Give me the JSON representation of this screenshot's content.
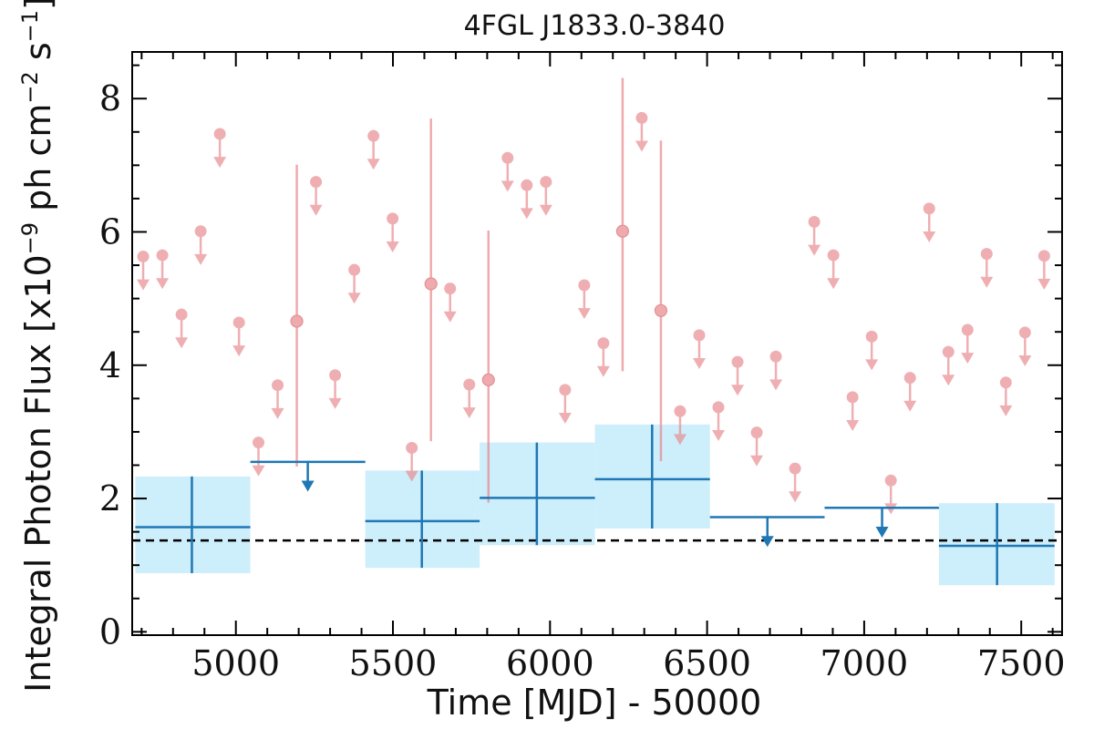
{
  "chart_data": {
    "type": "scatter",
    "title": "4FGL J1833.0-3840",
    "xlabel": "Time [MJD] - 50000",
    "ylabel": "Integral Photon Flux [x10",
    "ylabel_exp1": "−9",
    "ylabel_mid": " ph cm",
    "ylabel_exp2": "−2",
    "ylabel_mid2": " s",
    "ylabel_exp3": "−1",
    "ylabel_end": "]",
    "xlim": [
      4670,
      7630
    ],
    "ylim": [
      -0.05,
      8.7
    ],
    "x_ticks": [
      5000,
      5500,
      6000,
      6500,
      7000,
      7500
    ],
    "x_tick_labels": [
      "5000",
      "5500",
      "6000",
      "6500",
      "7000",
      "7500"
    ],
    "y_ticks": [
      0,
      2,
      4,
      6,
      8
    ],
    "y_tick_labels": [
      "0",
      "2",
      "4",
      "6",
      "8"
    ],
    "grid": false,
    "legend": "none",
    "colors": {
      "short_bins": "#e88a8e",
      "long_bins": "#1f77b4",
      "long_bins_band": "#cdeefb",
      "average_line": "#000000"
    },
    "average_flux": 1.37,
    "series": [
      {
        "role": "short_bins_upper_limits",
        "points": [
          {
            "x": 4705,
            "y": 5.63
          },
          {
            "x": 4766,
            "y": 5.65
          },
          {
            "x": 4827,
            "y": 4.76
          },
          {
            "x": 4888,
            "y": 6.01
          },
          {
            "x": 4949,
            "y": 7.47
          },
          {
            "x": 5010,
            "y": 4.64
          },
          {
            "x": 5072,
            "y": 2.84
          },
          {
            "x": 5133,
            "y": 3.7
          },
          {
            "x": 5255,
            "y": 6.75
          },
          {
            "x": 5316,
            "y": 3.85
          },
          {
            "x": 5377,
            "y": 5.43
          },
          {
            "x": 5438,
            "y": 7.44
          },
          {
            "x": 5499,
            "y": 6.2
          },
          {
            "x": 5560,
            "y": 2.76
          },
          {
            "x": 5682,
            "y": 5.15
          },
          {
            "x": 5743,
            "y": 3.71
          },
          {
            "x": 5865,
            "y": 7.11
          },
          {
            "x": 5926,
            "y": 6.7
          },
          {
            "x": 5987,
            "y": 6.75
          },
          {
            "x": 6048,
            "y": 3.63
          },
          {
            "x": 6109,
            "y": 5.2
          },
          {
            "x": 6170,
            "y": 4.33
          },
          {
            "x": 6292,
            "y": 7.71
          },
          {
            "x": 6414,
            "y": 3.31
          },
          {
            "x": 6475,
            "y": 4.45
          },
          {
            "x": 6536,
            "y": 3.37
          },
          {
            "x": 6597,
            "y": 4.05
          },
          {
            "x": 6658,
            "y": 2.99
          },
          {
            "x": 6719,
            "y": 4.13
          },
          {
            "x": 6780,
            "y": 2.45
          },
          {
            "x": 6841,
            "y": 6.15
          },
          {
            "x": 6902,
            "y": 5.65
          },
          {
            "x": 6963,
            "y": 3.52
          },
          {
            "x": 7024,
            "y": 4.43
          },
          {
            "x": 7085,
            "y": 2.27
          },
          {
            "x": 7146,
            "y": 3.81
          },
          {
            "x": 7207,
            "y": 6.35
          },
          {
            "x": 7268,
            "y": 4.2
          },
          {
            "x": 7329,
            "y": 4.53
          },
          {
            "x": 7390,
            "y": 5.67
          },
          {
            "x": 7451,
            "y": 3.74
          },
          {
            "x": 7512,
            "y": 4.49
          },
          {
            "x": 7573,
            "y": 5.64
          }
        ]
      },
      {
        "role": "short_bins_detections",
        "points": [
          {
            "x": 5194,
            "y": 4.66,
            "y_low": 2.48,
            "y_high": 7.01
          },
          {
            "x": 5621,
            "y": 5.22,
            "y_low": 2.86,
            "y_high": 7.7
          },
          {
            "x": 5804,
            "y": 3.78,
            "y_low": 1.94,
            "y_high": 6.02
          },
          {
            "x": 6231,
            "y": 6.01,
            "y_low": 3.91,
            "y_high": 8.31
          },
          {
            "x": 6353,
            "y": 4.82,
            "y_low": 2.56,
            "y_high": 7.37
          }
        ]
      },
      {
        "role": "long_bins_detections",
        "points": [
          {
            "x": 4860,
            "x_low": 4680,
            "x_high": 5046,
            "y": 1.57,
            "y_low": 0.88,
            "y_high": 2.33
          },
          {
            "x": 5592,
            "x_low": 5412,
            "x_high": 5776,
            "y": 1.66,
            "y_low": 0.96,
            "y_high": 2.42
          },
          {
            "x": 5958,
            "x_low": 5776,
            "x_high": 6143,
            "y": 2.01,
            "y_low": 1.3,
            "y_high": 2.84
          },
          {
            "x": 6325,
            "x_low": 6143,
            "x_high": 6509,
            "y": 2.29,
            "y_low": 1.55,
            "y_high": 3.11
          },
          {
            "x": 7423,
            "x_low": 7238,
            "x_high": 7606,
            "y": 1.29,
            "y_low": 0.7,
            "y_high": 1.93
          }
        ]
      },
      {
        "role": "long_bins_upper_limits",
        "points": [
          {
            "x": 5229,
            "x_low": 5046,
            "x_high": 5412,
            "y": 2.55
          },
          {
            "x": 6692,
            "x_low": 6509,
            "x_high": 6874,
            "y": 1.72
          },
          {
            "x": 7057,
            "x_low": 6874,
            "x_high": 7238,
            "y": 1.86
          }
        ]
      }
    ]
  }
}
